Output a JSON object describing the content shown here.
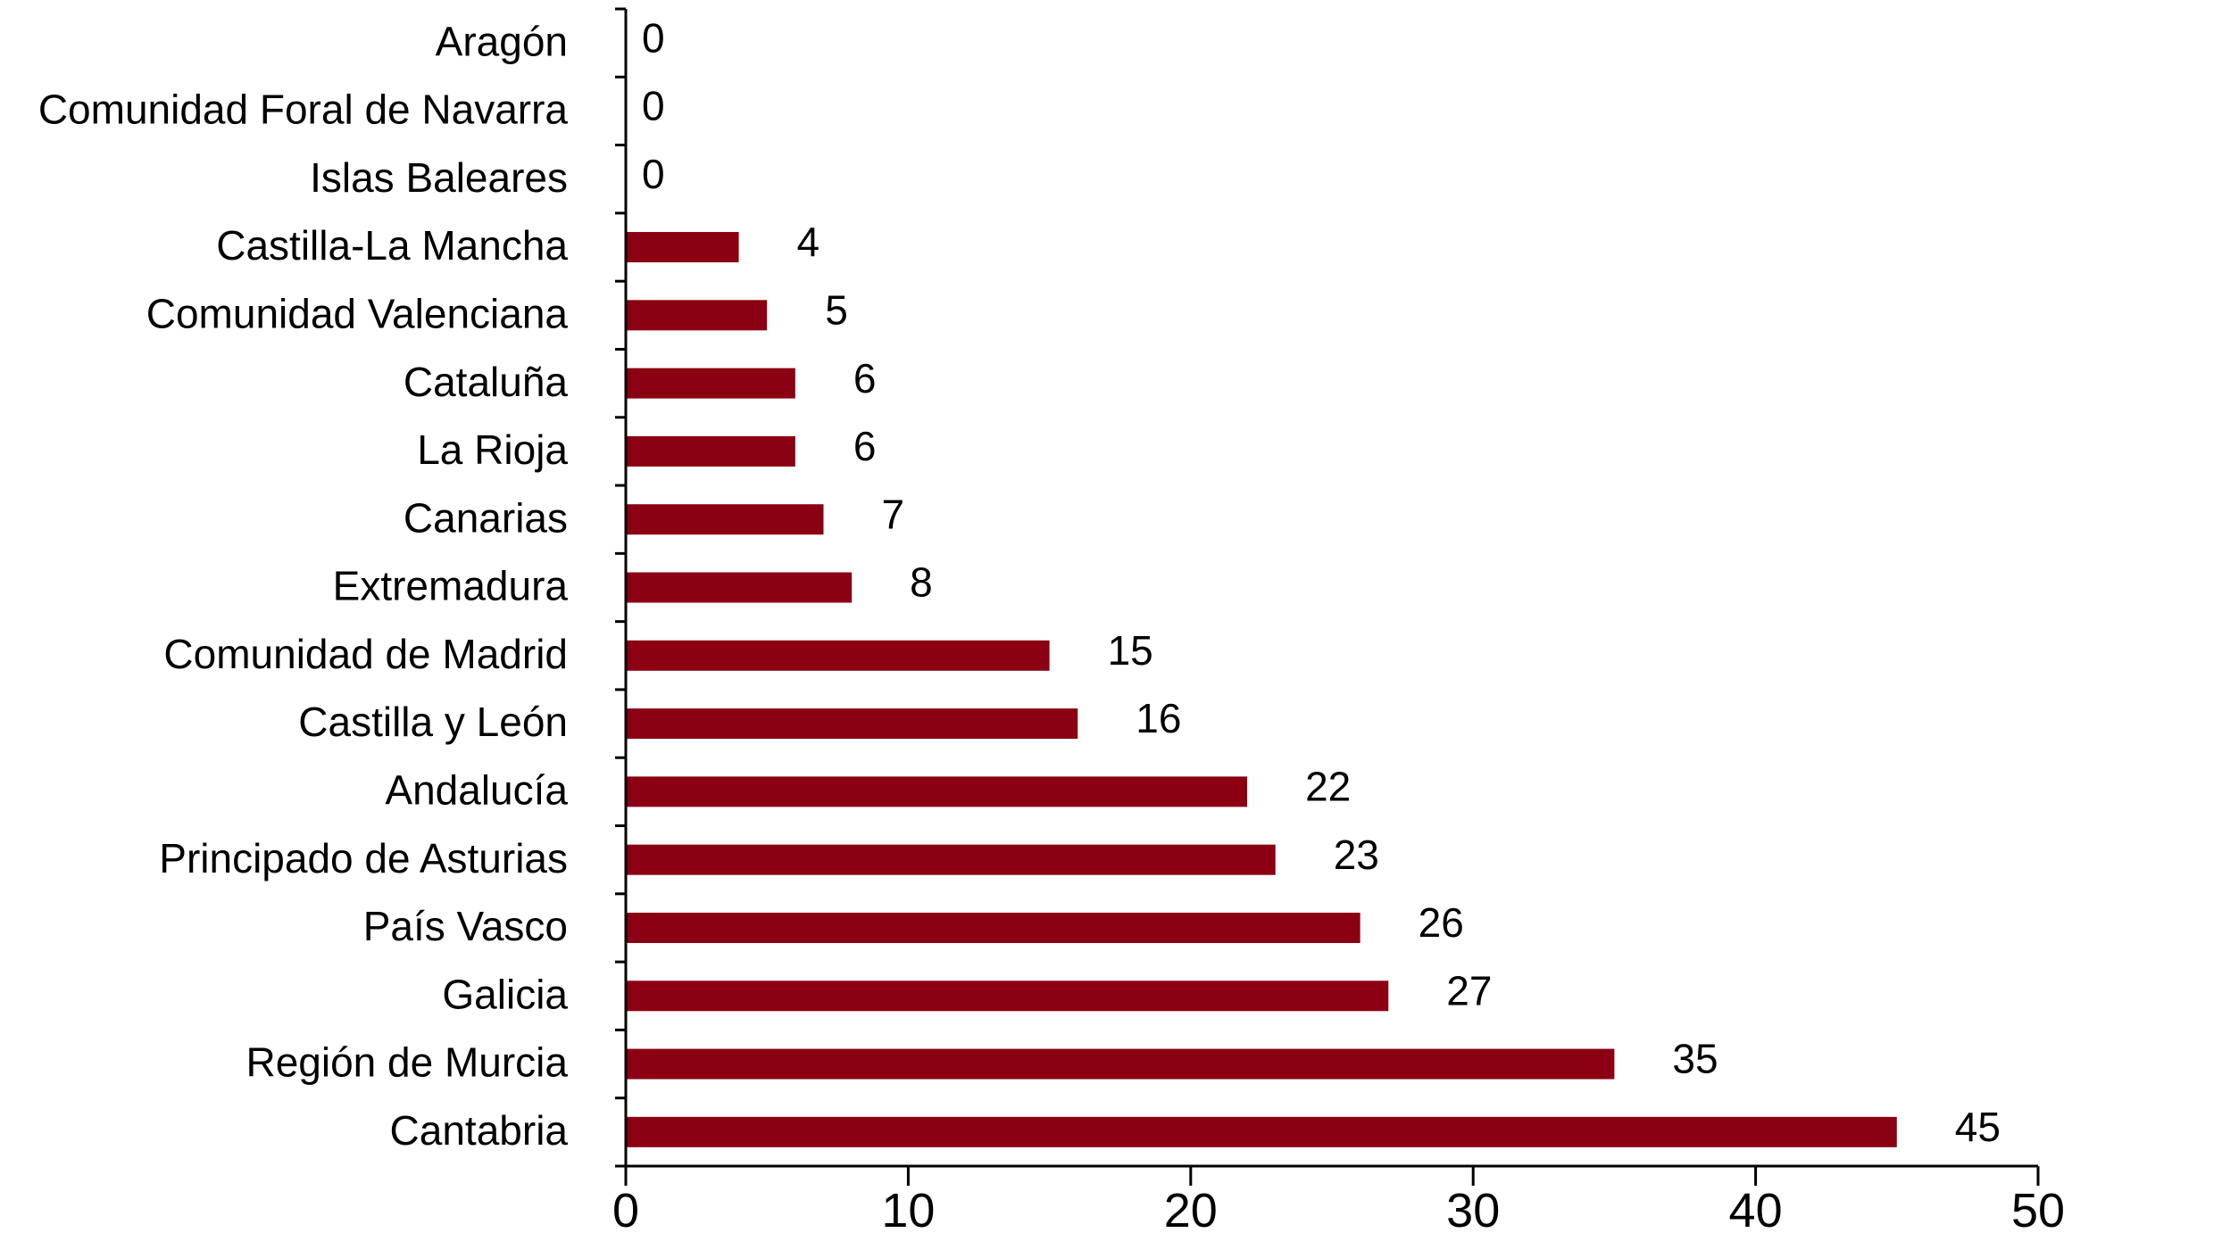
{
  "chart_data": {
    "type": "bar",
    "orientation": "horizontal",
    "categories": [
      "Aragón",
      "Comunidad Foral de Navarra",
      "Islas Baleares",
      "Castilla-La Mancha",
      "Comunidad Valenciana",
      "Cataluña",
      "La Rioja",
      "Canarias",
      "Extremadura",
      "Comunidad de Madrid",
      "Castilla y León",
      "Andalucía",
      "Principado de Asturias",
      "País Vasco",
      "Galicia",
      "Región de Murcia",
      "Cantabria"
    ],
    "values": [
      0,
      0,
      0,
      4,
      5,
      6,
      6,
      7,
      8,
      15,
      16,
      22,
      23,
      26,
      27,
      35,
      45
    ],
    "xticks": [
      "0",
      "10",
      "20",
      "30",
      "40",
      "50"
    ],
    "xlim": [
      0,
      50
    ],
    "title": "",
    "xlabel": "",
    "ylabel": "",
    "bar_color": "#8b0012",
    "grid": false,
    "data_labels": true
  }
}
